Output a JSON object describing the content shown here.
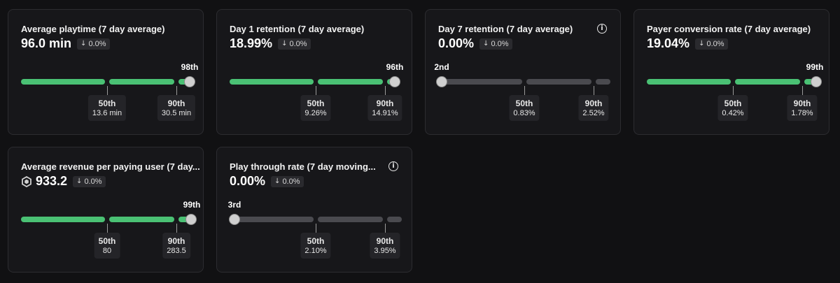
{
  "cards": [
    {
      "title": "Average playtime (7 day average)",
      "value": "96.0 min",
      "change": "0.0%",
      "rank": "98th",
      "p50_label": "50th",
      "p50_value": "13.6 min",
      "p90_label": "90th",
      "p90_value": "30.5 min"
    },
    {
      "title": "Day 1 retention (7 day average)",
      "value": "18.99%",
      "change": "0.0%",
      "rank": "96th",
      "p50_label": "50th",
      "p50_value": "9.26%",
      "p90_label": "90th",
      "p90_value": "14.91%"
    },
    {
      "title": "Day 7 retention (7 day average)",
      "value": "0.00%",
      "change": "0.0%",
      "rank": "2nd",
      "p50_label": "50th",
      "p50_value": "0.83%",
      "p90_label": "90th",
      "p90_value": "2.52%"
    },
    {
      "title": "Payer conversion rate (7 day average)",
      "value": "19.04%",
      "change": "0.0%",
      "rank": "99th",
      "p50_label": "50th",
      "p50_value": "0.42%",
      "p90_label": "90th",
      "p90_value": "1.78%"
    },
    {
      "title": "Average revenue per paying user (7 day...",
      "value": "933.2",
      "change": "0.0%",
      "rank": "99th",
      "p50_label": "50th",
      "p50_value": "80",
      "p90_label": "90th",
      "p90_value": "283.5"
    },
    {
      "title": "Play through rate (7 day moving...",
      "value": "0.00%",
      "change": "0.0%",
      "rank": "3rd",
      "p50_label": "50th",
      "p50_value": "2.10%",
      "p90_label": "90th",
      "p90_value": "3.95%"
    }
  ],
  "colors": {
    "good": "#4ac174",
    "neutral": "#4a4a4f",
    "background": "#111113",
    "card": "#17171a"
  },
  "icons": {
    "info": "info-icon",
    "change": "arrow-down-icon",
    "currency": "robux-icon"
  }
}
